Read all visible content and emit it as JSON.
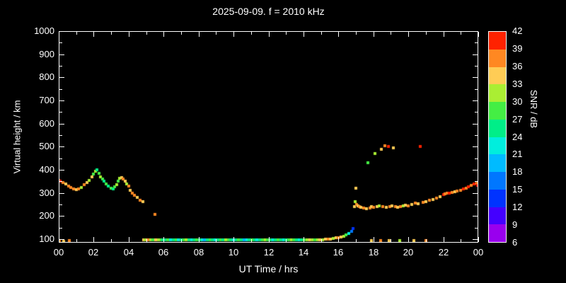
{
  "window": {
    "title": "2025-09-09. f = 2010 kHz"
  },
  "colors": {
    "background": "#000000",
    "foreground": "#ffffff"
  },
  "chart_data": {
    "type": "scatter",
    "title": "2025-09-09. f = 2010 kHz",
    "xlabel": "UT Time / hrs",
    "ylabel": "Virtual height / km",
    "grid": false,
    "x_axis": {
      "min": 0,
      "max": 24,
      "major_tick_hours": [
        0,
        2,
        4,
        6,
        8,
        10,
        12,
        14,
        16,
        18,
        20,
        22,
        24
      ],
      "major_tick_labels": [
        "00",
        "02",
        "04",
        "06",
        "08",
        "10",
        "12",
        "14",
        "16",
        "18",
        "20",
        "22",
        "00"
      ],
      "minor_tick_step_hours": 1
    },
    "y_axis": {
      "min": 85,
      "max": 1000,
      "major_tick_values": [
        100,
        200,
        300,
        400,
        500,
        600,
        700,
        800,
        900,
        1000
      ],
      "minor_tick_step": 50
    },
    "colorbar": {
      "label": "SNR / dB",
      "tick_values": [
        6,
        9,
        12,
        15,
        18,
        21,
        24,
        27,
        30,
        33,
        36,
        39,
        42
      ],
      "band_colors_bottom_to_top": [
        "#9900ee",
        "#4400ff",
        "#0033ff",
        "#0077ff",
        "#00bbff",
        "#00eedd",
        "#00ee88",
        "#44ee44",
        "#aaee33",
        "#ffcc55",
        "#ff8822",
        "#ff2200"
      ]
    },
    "point_format": [
      "ut_hours",
      "virtual_height_km",
      "snr_db"
    ],
    "points": [
      [
        0.0,
        355,
        36
      ],
      [
        0.1,
        350,
        39
      ],
      [
        0.25,
        345,
        36
      ],
      [
        0.4,
        338,
        33
      ],
      [
        0.55,
        330,
        36
      ],
      [
        0.7,
        325,
        36
      ],
      [
        0.85,
        318,
        36
      ],
      [
        1.0,
        315,
        33
      ],
      [
        1.15,
        318,
        36
      ],
      [
        1.3,
        325,
        30
      ],
      [
        1.45,
        335,
        36
      ],
      [
        1.6,
        345,
        33
      ],
      [
        1.75,
        355,
        30
      ],
      [
        1.9,
        370,
        33
      ],
      [
        2.0,
        382,
        27
      ],
      [
        2.1,
        395,
        30
      ],
      [
        2.2,
        400,
        24
      ],
      [
        2.3,
        386,
        27
      ],
      [
        2.4,
        370,
        30
      ],
      [
        2.5,
        360,
        27
      ],
      [
        2.6,
        350,
        24
      ],
      [
        2.7,
        340,
        27
      ],
      [
        2.85,
        330,
        24
      ],
      [
        3.0,
        320,
        27
      ],
      [
        3.1,
        318,
        24
      ],
      [
        3.2,
        326,
        27
      ],
      [
        3.3,
        336,
        30
      ],
      [
        3.4,
        350,
        27
      ],
      [
        3.5,
        362,
        30
      ],
      [
        3.6,
        366,
        33
      ],
      [
        3.7,
        360,
        36
      ],
      [
        3.8,
        350,
        33
      ],
      [
        3.9,
        340,
        30
      ],
      [
        4.0,
        330,
        36
      ],
      [
        4.1,
        312,
        33
      ],
      [
        4.2,
        300,
        36
      ],
      [
        4.35,
        290,
        36
      ],
      [
        4.5,
        280,
        33
      ],
      [
        4.65,
        270,
        36
      ],
      [
        4.8,
        262,
        33
      ],
      [
        5.5,
        207,
        36
      ],
      [
        0.05,
        93,
        36
      ],
      [
        0.3,
        92,
        33
      ],
      [
        0.6,
        94,
        36
      ],
      [
        4.85,
        97,
        33
      ],
      [
        4.95,
        96,
        30
      ],
      [
        5.05,
        98,
        33
      ],
      [
        5.15,
        97,
        36
      ],
      [
        5.25,
        96,
        30
      ],
      [
        5.4,
        97,
        27
      ],
      [
        5.55,
        96,
        33
      ],
      [
        5.7,
        97,
        30
      ],
      [
        5.85,
        96,
        27
      ],
      [
        5.95,
        97,
        24
      ],
      [
        6.1,
        96,
        24
      ],
      [
        6.25,
        97,
        27
      ],
      [
        6.4,
        96,
        21
      ],
      [
        6.55,
        97,
        24
      ],
      [
        6.7,
        96,
        27
      ],
      [
        6.85,
        97,
        21
      ],
      [
        7.0,
        96,
        24
      ],
      [
        7.15,
        97,
        27
      ],
      [
        7.3,
        96,
        30
      ],
      [
        7.45,
        97,
        24
      ],
      [
        7.6,
        96,
        21
      ],
      [
        7.75,
        97,
        24
      ],
      [
        7.9,
        96,
        27
      ],
      [
        8.05,
        97,
        24
      ],
      [
        8.2,
        96,
        21
      ],
      [
        8.35,
        97,
        18
      ],
      [
        8.5,
        96,
        24
      ],
      [
        8.65,
        97,
        27
      ],
      [
        8.8,
        96,
        24
      ],
      [
        8.95,
        97,
        21
      ],
      [
        9.1,
        96,
        24
      ],
      [
        9.25,
        97,
        27
      ],
      [
        9.4,
        96,
        24
      ],
      [
        9.55,
        97,
        30
      ],
      [
        9.7,
        96,
        27
      ],
      [
        9.85,
        97,
        24
      ],
      [
        10.0,
        96,
        21
      ],
      [
        10.15,
        97,
        24
      ],
      [
        10.3,
        96,
        27
      ],
      [
        10.45,
        97,
        24
      ],
      [
        10.6,
        96,
        18
      ],
      [
        10.75,
        97,
        21
      ],
      [
        10.9,
        96,
        24
      ],
      [
        11.05,
        97,
        27
      ],
      [
        11.2,
        96,
        24
      ],
      [
        11.35,
        97,
        21
      ],
      [
        11.5,
        96,
        24
      ],
      [
        11.65,
        97,
        27
      ],
      [
        11.8,
        96,
        30
      ],
      [
        11.95,
        97,
        27
      ],
      [
        12.1,
        96,
        24
      ],
      [
        12.25,
        97,
        21
      ],
      [
        12.4,
        96,
        24
      ],
      [
        12.55,
        97,
        27
      ],
      [
        12.7,
        96,
        24
      ],
      [
        12.85,
        97,
        21
      ],
      [
        13.0,
        96,
        24
      ],
      [
        13.15,
        97,
        27
      ],
      [
        13.3,
        96,
        30
      ],
      [
        13.45,
        97,
        27
      ],
      [
        13.6,
        96,
        24
      ],
      [
        13.75,
        97,
        21
      ],
      [
        13.9,
        96,
        24
      ],
      [
        14.05,
        97,
        27
      ],
      [
        14.2,
        96,
        30
      ],
      [
        14.35,
        97,
        33
      ],
      [
        14.5,
        96,
        30
      ],
      [
        14.65,
        97,
        27
      ],
      [
        14.8,
        96,
        30
      ],
      [
        14.95,
        97,
        33
      ],
      [
        15.1,
        98,
        30
      ],
      [
        15.25,
        99,
        33
      ],
      [
        15.4,
        100,
        36
      ],
      [
        15.55,
        101,
        33
      ],
      [
        15.7,
        103,
        30
      ],
      [
        15.85,
        105,
        33
      ],
      [
        16.0,
        107,
        36
      ],
      [
        16.15,
        110,
        33
      ],
      [
        16.3,
        113,
        30
      ],
      [
        16.45,
        118,
        27
      ],
      [
        16.6,
        125,
        21
      ],
      [
        16.75,
        135,
        15
      ],
      [
        16.85,
        145,
        12
      ],
      [
        16.9,
        240,
        33
      ],
      [
        16.95,
        262,
        30
      ],
      [
        17.0,
        320,
        33
      ],
      [
        17.05,
        250,
        36
      ],
      [
        17.1,
        245,
        33
      ],
      [
        17.2,
        240,
        36
      ],
      [
        17.3,
        238,
        33
      ],
      [
        17.45,
        236,
        36
      ],
      [
        17.6,
        233,
        33
      ],
      [
        17.7,
        430,
        27
      ],
      [
        17.8,
        235,
        36
      ],
      [
        17.9,
        240,
        33
      ],
      [
        18.0,
        238,
        36
      ],
      [
        18.1,
        470,
        30
      ],
      [
        18.2,
        242,
        33
      ],
      [
        18.35,
        245,
        30
      ],
      [
        18.45,
        490,
        33
      ],
      [
        18.55,
        240,
        36
      ],
      [
        18.65,
        505,
        36
      ],
      [
        18.75,
        238,
        33
      ],
      [
        18.85,
        500,
        39
      ],
      [
        18.95,
        242,
        36
      ],
      [
        19.05,
        245,
        33
      ],
      [
        19.15,
        495,
        33
      ],
      [
        19.25,
        240,
        36
      ],
      [
        19.4,
        238,
        33
      ],
      [
        19.55,
        242,
        36
      ],
      [
        19.7,
        245,
        30
      ],
      [
        19.85,
        248,
        33
      ],
      [
        20.0,
        245,
        36
      ],
      [
        20.2,
        250,
        33
      ],
      [
        20.4,
        255,
        36
      ],
      [
        20.55,
        252,
        33
      ],
      [
        20.7,
        500,
        39
      ],
      [
        20.85,
        258,
        36
      ],
      [
        21.0,
        262,
        33
      ],
      [
        21.2,
        268,
        36
      ],
      [
        21.4,
        272,
        33
      ],
      [
        21.6,
        278,
        36
      ],
      [
        21.8,
        285,
        33
      ],
      [
        22.0,
        292,
        39
      ],
      [
        22.1,
        296,
        36
      ],
      [
        22.2,
        300,
        36
      ],
      [
        22.35,
        298,
        39
      ],
      [
        22.5,
        302,
        36
      ],
      [
        22.65,
        305,
        33
      ],
      [
        22.8,
        308,
        36
      ],
      [
        23.0,
        312,
        36
      ],
      [
        23.15,
        318,
        39
      ],
      [
        23.3,
        322,
        36
      ],
      [
        23.45,
        328,
        39
      ],
      [
        23.6,
        332,
        36
      ],
      [
        23.75,
        338,
        39
      ],
      [
        23.9,
        342,
        36
      ],
      [
        23.95,
        332,
        39
      ],
      [
        17.9,
        95,
        33
      ],
      [
        18.4,
        94,
        36
      ],
      [
        18.9,
        95,
        33
      ],
      [
        19.5,
        94,
        30
      ],
      [
        20.3,
        95,
        33
      ],
      [
        21.0,
        94,
        36
      ]
    ]
  }
}
